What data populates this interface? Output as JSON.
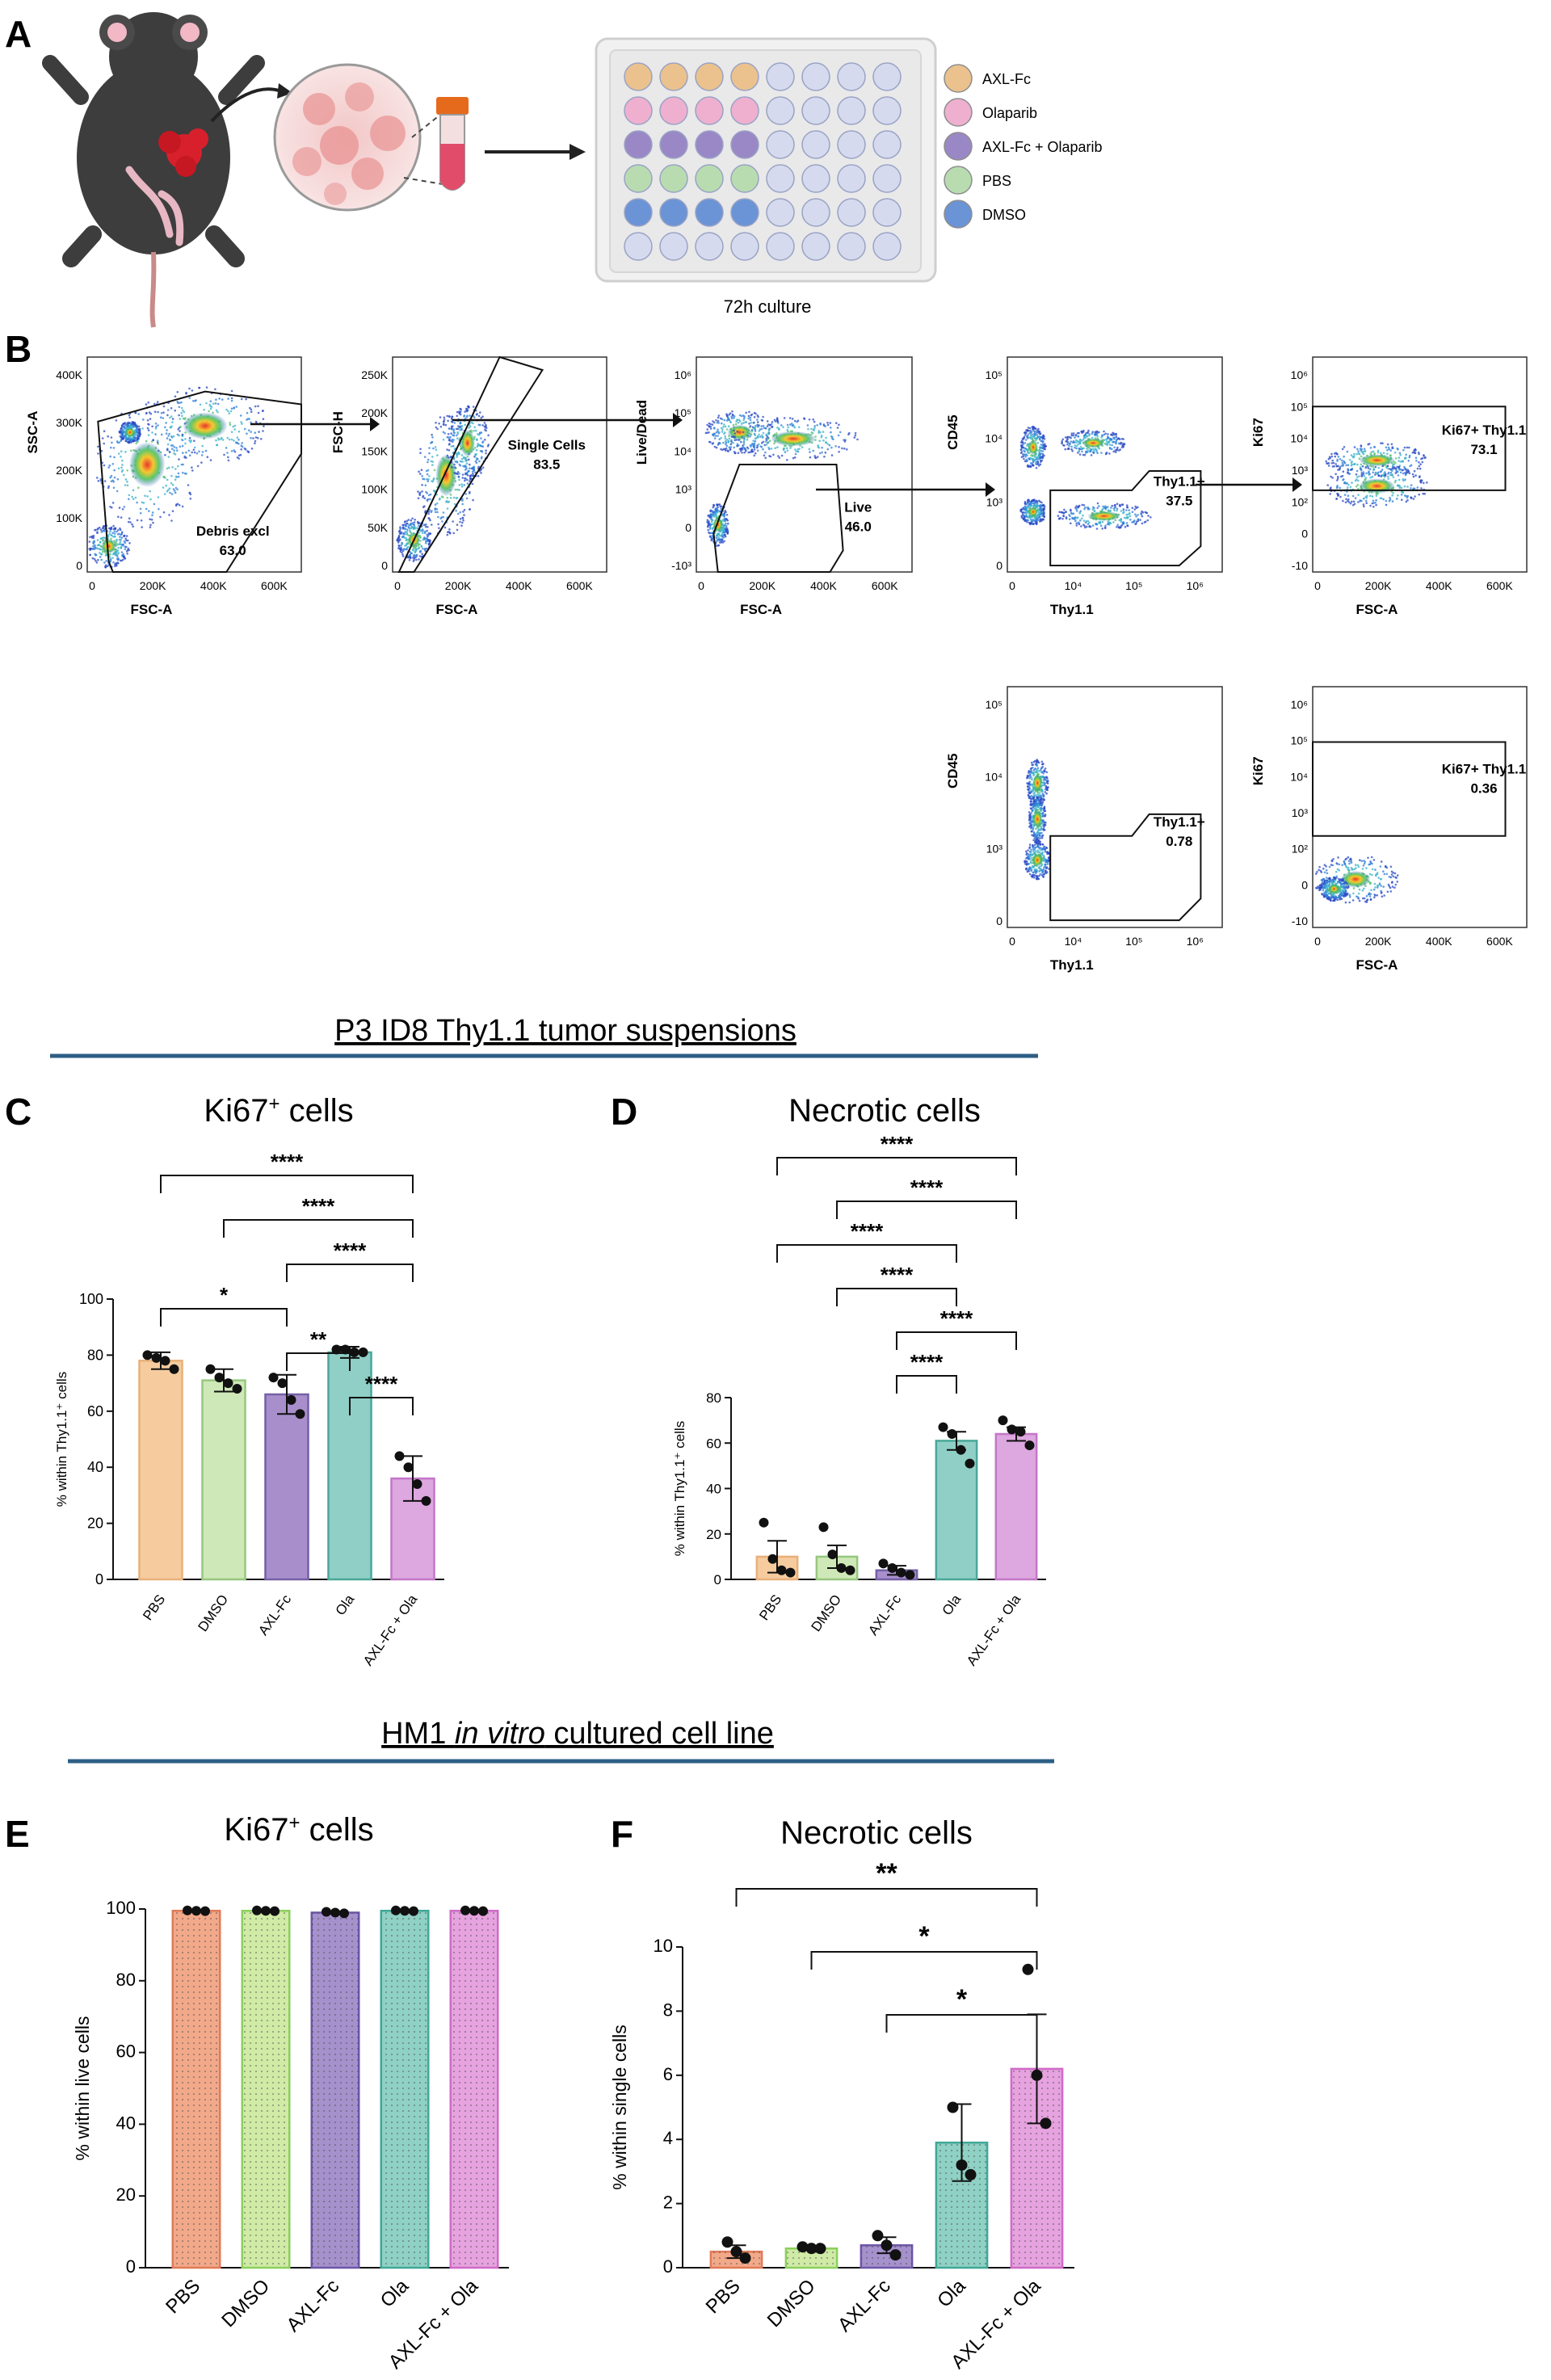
{
  "figure": {
    "panel_letters": [
      "A",
      "B",
      "C",
      "D",
      "E",
      "F"
    ]
  },
  "panel_a": {
    "plate_caption": "72h culture",
    "legend": [
      {
        "label": "AXL-Fc",
        "color": "#ebc28d"
      },
      {
        "label": "Olaparib",
        "color": "#efb0d0"
      },
      {
        "label": "AXL-Fc + Olaparib",
        "color": "#9a88c6"
      },
      {
        "label": "PBS",
        "color": "#b8dcb0"
      },
      {
        "label": "DMSO",
        "color": "#6b94d6"
      }
    ],
    "plate_rows": [
      "#ebc28d",
      "#efb0d0",
      "#9a88c6",
      "#b8dcb0",
      "#6b94d6",
      "#d5daee"
    ],
    "plate_row_filled_cols": [
      4,
      4,
      4,
      4,
      4,
      0
    ],
    "empty_well_color": "#d5daee"
  },
  "panel_b": {
    "plots": [
      {
        "id": "b1",
        "ylabel": "SSC-A",
        "xlabel": "FSC-A",
        "yticks": [
          "400K",
          "300K",
          "200K",
          "100K",
          "0"
        ],
        "xticks": [
          "0",
          "200K",
          "400K",
          "600K"
        ],
        "gate_label": "Debris excl",
        "gate_value": "63.0"
      },
      {
        "id": "b2",
        "ylabel": "FSC-H",
        "xlabel": "FSC-A",
        "yticks": [
          "250K",
          "200K",
          "150K",
          "100K",
          "50K",
          "0"
        ],
        "xticks": [
          "0",
          "200K",
          "400K",
          "600K"
        ],
        "gate_label": "Single Cells",
        "gate_value": "83.5"
      },
      {
        "id": "b3",
        "ylabel": "Live/Dead",
        "xlabel": "FSC-A",
        "yticks": [
          "10⁶",
          "10⁵",
          "10⁴",
          "10³",
          "0",
          "-10³"
        ],
        "xticks": [
          "0",
          "200K",
          "400K",
          "600K"
        ],
        "gate_label": "Live",
        "gate_value": "46.0"
      },
      {
        "id": "b4",
        "ylabel": "CD45",
        "xlabel": "Thy1.1",
        "yticks": [
          "10⁵",
          "10⁴",
          "10³",
          "0"
        ],
        "xticks": [
          "0",
          "10⁴",
          "10⁵",
          "10⁶"
        ],
        "gate_label": "Thy1.1+",
        "gate_value": "37.5"
      },
      {
        "id": "b5",
        "ylabel": "Ki67",
        "xlabel": "FSC-A",
        "yticks": [
          "10⁶",
          "10⁵",
          "10⁴",
          "10³",
          "10²",
          "0",
          "-10"
        ],
        "xticks": [
          "0",
          "200K",
          "400K",
          "600K"
        ],
        "gate_label": "Ki67+ Thy1.1",
        "gate_value": "73.1"
      },
      {
        "id": "b6",
        "ylabel": "CD45",
        "xlabel": "Thy1.1",
        "yticks": [
          "10⁵",
          "10⁴",
          "10³",
          "0"
        ],
        "xticks": [
          "0",
          "10⁴",
          "10⁵",
          "10⁶"
        ],
        "gate_label": "Thy1.1+",
        "gate_value": "0.78"
      },
      {
        "id": "b7",
        "ylabel": "Ki67",
        "xlabel": "FSC-A",
        "yticks": [
          "10⁶",
          "10⁵",
          "10⁴",
          "10³",
          "10²",
          "0",
          "-10"
        ],
        "xticks": [
          "0",
          "200K",
          "400K",
          "600K"
        ],
        "gate_label": "Ki67+ Thy1.1",
        "gate_value": "0.36"
      }
    ]
  },
  "section_headers": {
    "cd": "P3 ID8 Thy1.1 tumor suspensions",
    "ef_pre": "HM1 ",
    "ef_italic": "in vitro",
    "ef_post": " cultured cell line"
  },
  "chart_data": [
    {
      "panel": "C",
      "type": "bar",
      "title_main": "Ki67",
      "title_sup": "+",
      "title_rest": " cells",
      "ylabel": "% within Thy1.1⁺ cells",
      "xlabel": "",
      "categories": [
        "PBS",
        "DMSO",
        "AXL-Fc",
        "Ola",
        "AXL-Fc + Ola"
      ],
      "values": [
        78,
        71,
        66,
        81,
        36
      ],
      "errors": [
        3,
        4,
        7,
        2,
        8
      ],
      "points": [
        [
          80,
          79,
          78,
          75
        ],
        [
          75,
          72,
          70,
          68
        ],
        [
          72,
          70,
          64,
          59
        ],
        [
          82,
          82,
          81,
          81
        ],
        [
          44,
          40,
          34,
          28
        ]
      ],
      "ylim": [
        0,
        100
      ],
      "yticks": [
        0,
        20,
        40,
        60,
        80,
        100
      ],
      "colors": [
        "#f6cc9e",
        "#cfe8b8",
        "#a88fcb",
        "#8fcfc6",
        "#dda7df"
      ],
      "edge_colors": [
        "#e7b07a",
        "#96c77f",
        "#7460a6",
        "#4aa79a",
        "#c476c8"
      ],
      "comparisons": [
        {
          "from": 0,
          "to": 4,
          "label": "****"
        },
        {
          "from": 1,
          "to": 4,
          "label": "****"
        },
        {
          "from": 2,
          "to": 4,
          "label": "****"
        },
        {
          "from": 0,
          "to": 2,
          "label": "*"
        },
        {
          "from": 2,
          "to": 3,
          "label": "**"
        },
        {
          "from": 3,
          "to": 4,
          "label": "****"
        }
      ]
    },
    {
      "panel": "D",
      "type": "bar",
      "title_main": "Necrotic cells",
      "title_sup": "",
      "title_rest": "",
      "ylabel": "% within Thy1.1⁺ cells",
      "xlabel": "",
      "categories": [
        "PBS",
        "DMSO",
        "AXL-Fc",
        "Ola",
        "AXL-Fc + Ola"
      ],
      "values": [
        10,
        10,
        4,
        61,
        64
      ],
      "errors": [
        7,
        5,
        2,
        4,
        3
      ],
      "points": [
        [
          25,
          9,
          4,
          3
        ],
        [
          23,
          11,
          5,
          4
        ],
        [
          7,
          5,
          3,
          2
        ],
        [
          67,
          64,
          57,
          51
        ],
        [
          70,
          66,
          65,
          59
        ]
      ],
      "ylim": [
        0,
        80
      ],
      "yticks": [
        0,
        20,
        40,
        60,
        80
      ],
      "colors": [
        "#f6cc9e",
        "#cfe8b8",
        "#a88fcb",
        "#8fcfc6",
        "#dda7df"
      ],
      "edge_colors": [
        "#e7b07a",
        "#96c77f",
        "#7460a6",
        "#4aa79a",
        "#c476c8"
      ],
      "comparisons": [
        {
          "from": 0,
          "to": 4,
          "label": "****"
        },
        {
          "from": 1,
          "to": 4,
          "label": "****"
        },
        {
          "from": 0,
          "to": 3,
          "label": "****"
        },
        {
          "from": 1,
          "to": 3,
          "label": "****"
        },
        {
          "from": 2,
          "to": 4,
          "label": "****"
        },
        {
          "from": 2,
          "to": 3,
          "label": "****"
        }
      ]
    },
    {
      "panel": "E",
      "type": "bar",
      "title_main": "Ki67",
      "title_sup": "+",
      "title_rest": " cells",
      "ylabel": "% within live cells",
      "xlabel": "",
      "categories": [
        "PBS",
        "DMSO",
        "AXL-Fc",
        "Ola",
        "AXL-Fc + Ola"
      ],
      "values": [
        99.5,
        99.5,
        99,
        99.5,
        99.5
      ],
      "errors": [
        0.2,
        0.2,
        0.3,
        0.2,
        0.2
      ],
      "points": [
        [
          99.6,
          99.5,
          99.4
        ],
        [
          99.6,
          99.5,
          99.4
        ],
        [
          99.2,
          99.0,
          98.8
        ],
        [
          99.6,
          99.5,
          99.4
        ],
        [
          99.6,
          99.5,
          99.4
        ]
      ],
      "ylim": [
        0,
        100
      ],
      "yticks": [
        0,
        20,
        40,
        60,
        80,
        100
      ],
      "colors": [
        "#f2a98a",
        "#cfeba6",
        "#a591cc",
        "#8fd1c4",
        "#e6a3df"
      ],
      "edge_colors": [
        "#e07b58",
        "#8ccf5c",
        "#6d56a8",
        "#3fa896",
        "#cf6ac7"
      ],
      "dotted": true,
      "comparisons": []
    },
    {
      "panel": "F",
      "type": "bar",
      "title_main": "Necrotic cells",
      "title_sup": "",
      "title_rest": "",
      "ylabel": "% within single cells",
      "xlabel": "",
      "categories": [
        "PBS",
        "DMSO",
        "AXL-Fc",
        "Ola",
        "AXL-Fc + Ola"
      ],
      "values": [
        0.5,
        0.6,
        0.7,
        3.9,
        6.2
      ],
      "errors": [
        0.2,
        0.05,
        0.25,
        1.2,
        1.7
      ],
      "points": [
        [
          0.8,
          0.5,
          0.3
        ],
        [
          0.65,
          0.6,
          0.6
        ],
        [
          1.0,
          0.7,
          0.4
        ],
        [
          5.0,
          3.2,
          2.9
        ],
        [
          9.3,
          6.0,
          4.5
        ]
      ],
      "ylim": [
        0,
        10
      ],
      "yticks": [
        0,
        2,
        4,
        6,
        8,
        10
      ],
      "colors": [
        "#f2a98a",
        "#cfeba6",
        "#a591cc",
        "#8fd1c4",
        "#e6a3df"
      ],
      "edge_colors": [
        "#e07b58",
        "#8ccf5c",
        "#6d56a8",
        "#3fa896",
        "#cf6ac7"
      ],
      "dotted": true,
      "comparisons": [
        {
          "from": 0,
          "to": 4,
          "label": "**"
        },
        {
          "from": 1,
          "to": 4,
          "label": "*"
        },
        {
          "from": 2,
          "to": 4,
          "label": "*"
        }
      ]
    }
  ]
}
